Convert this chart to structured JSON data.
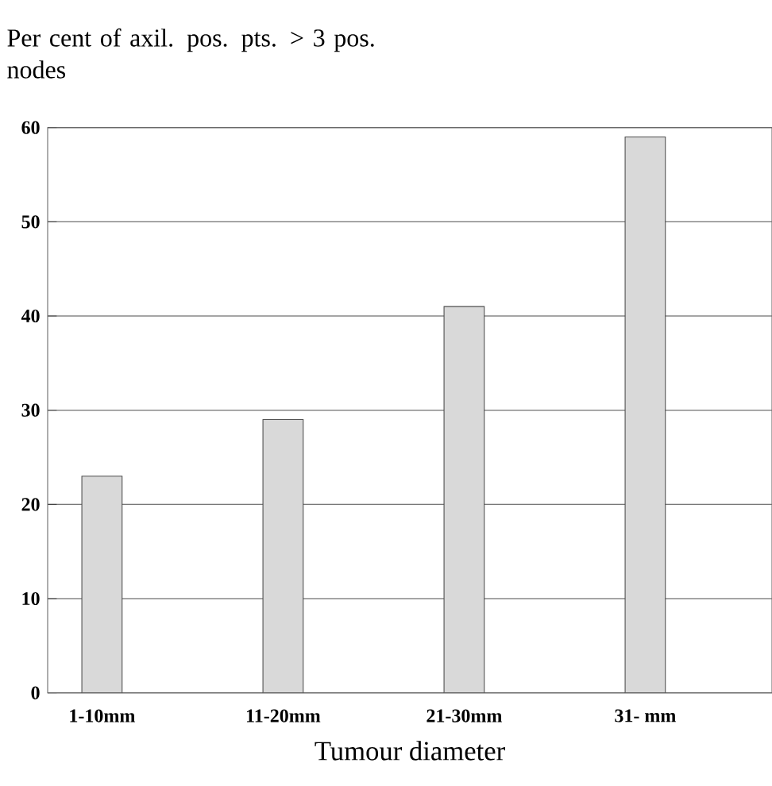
{
  "chart_data": {
    "type": "bar",
    "ylabel": "Per cent of axil. pos. pts. > 3 pos. nodes",
    "xlabel": "Tumour diameter",
    "categories": [
      "1-10mm",
      "11-20mm",
      "21-30mm",
      "31- mm"
    ],
    "values": [
      23,
      29,
      41,
      59
    ],
    "color": "#d9d9d9",
    "ylim": [
      0,
      60
    ],
    "yticks": [
      0,
      10,
      20,
      30,
      40,
      50,
      60
    ],
    "grid": "y"
  }
}
